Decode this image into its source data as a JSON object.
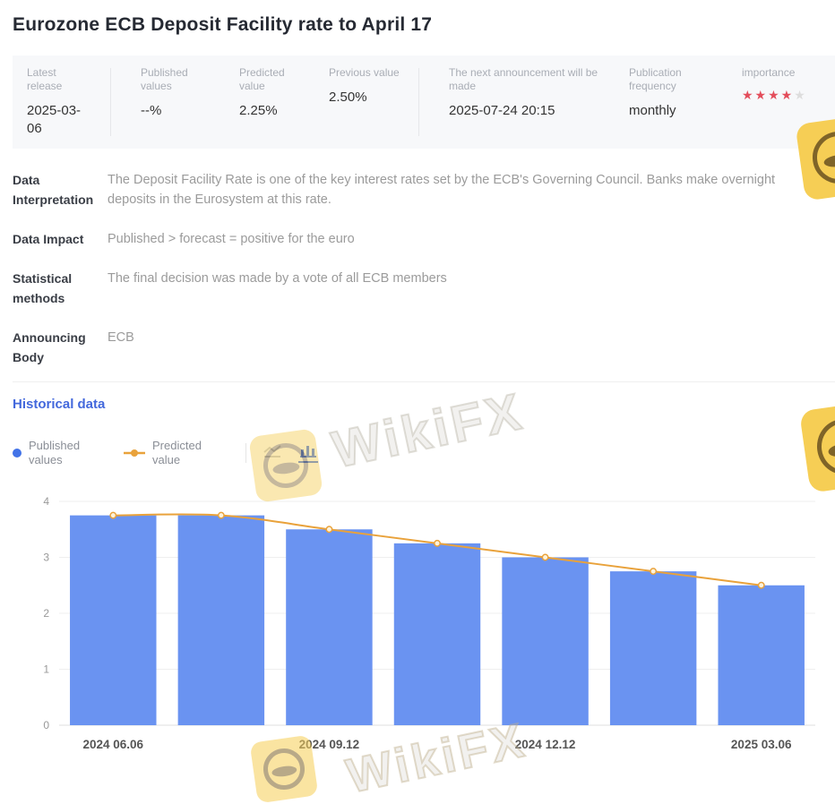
{
  "page": {
    "title": "Eurozone ECB Deposit Facility rate to April 17"
  },
  "info_bar": {
    "columns": [
      {
        "label": "Latest release",
        "value": "2025-03-06"
      },
      {
        "label": "Published values",
        "value": "--%"
      },
      {
        "label": "Predicted value",
        "value": "2.25%"
      },
      {
        "label": "Previous value",
        "value": "2.50%"
      },
      {
        "label": "The next announcement will be made",
        "value": "2025-07-24 20:15"
      },
      {
        "label": "Publication frequency",
        "value": "monthly"
      },
      {
        "label": "importance",
        "value": ""
      }
    ],
    "importance": {
      "filled": 4,
      "total": 5,
      "filled_stars": "★★★★",
      "empty_stars": "★"
    }
  },
  "sections": [
    {
      "label": "Data Interpretation",
      "value": "The Deposit Facility Rate is one of the key interest rates set by the ECB's Governing Council. Banks make overnight deposits in the Eurosystem at this rate."
    },
    {
      "label": "Data Impact",
      "value": "Published > forecast = positive for the euro"
    },
    {
      "label": "Statistical methods",
      "value": "The final decision was made by a vote of all ECB members"
    },
    {
      "label": "Announcing Body",
      "value": "ECB"
    }
  ],
  "historical": {
    "heading": "Historical data",
    "legend": [
      {
        "label": "Published values"
      },
      {
        "label": "Predicted value"
      }
    ],
    "chart_type_active": "bar"
  },
  "watermark": {
    "text": "WikiFX"
  },
  "colors": {
    "bar": "#6A93F1",
    "line": "#E9A23B",
    "marker_fill": "#FDF3DC",
    "grid": "#EFEFEF",
    "axis": "#DFDFDF",
    "tick_text": "#999999",
    "xlabel_text": "#555555",
    "accent_blue": "#4368DC",
    "legend_dot": "#4273E8",
    "star_red": "#E34D5B",
    "star_gray": "#DDDDDD",
    "watermark_yellow": "#F6CE55"
  },
  "chart_data": {
    "type": "bar",
    "categories": [
      "2024 06.06",
      "",
      "2024 09.12",
      "",
      "2024 12.12",
      "",
      "2025 03.06"
    ],
    "series": [
      {
        "name": "Published values",
        "type": "bar",
        "color": "#6A93F1",
        "values": [
          3.75,
          3.75,
          3.5,
          3.25,
          3.0,
          2.75,
          2.5
        ]
      },
      {
        "name": "Predicted value",
        "type": "line",
        "color": "#E9A23B",
        "values": [
          3.75,
          3.75,
          3.5,
          3.25,
          3.0,
          2.75,
          2.5
        ]
      }
    ],
    "title": "",
    "xlabel": "",
    "ylabel": "",
    "ylim": [
      0,
      4
    ],
    "yticks": [
      0,
      1,
      2,
      3,
      4
    ],
    "grid": true,
    "legend_position": "top-left"
  }
}
